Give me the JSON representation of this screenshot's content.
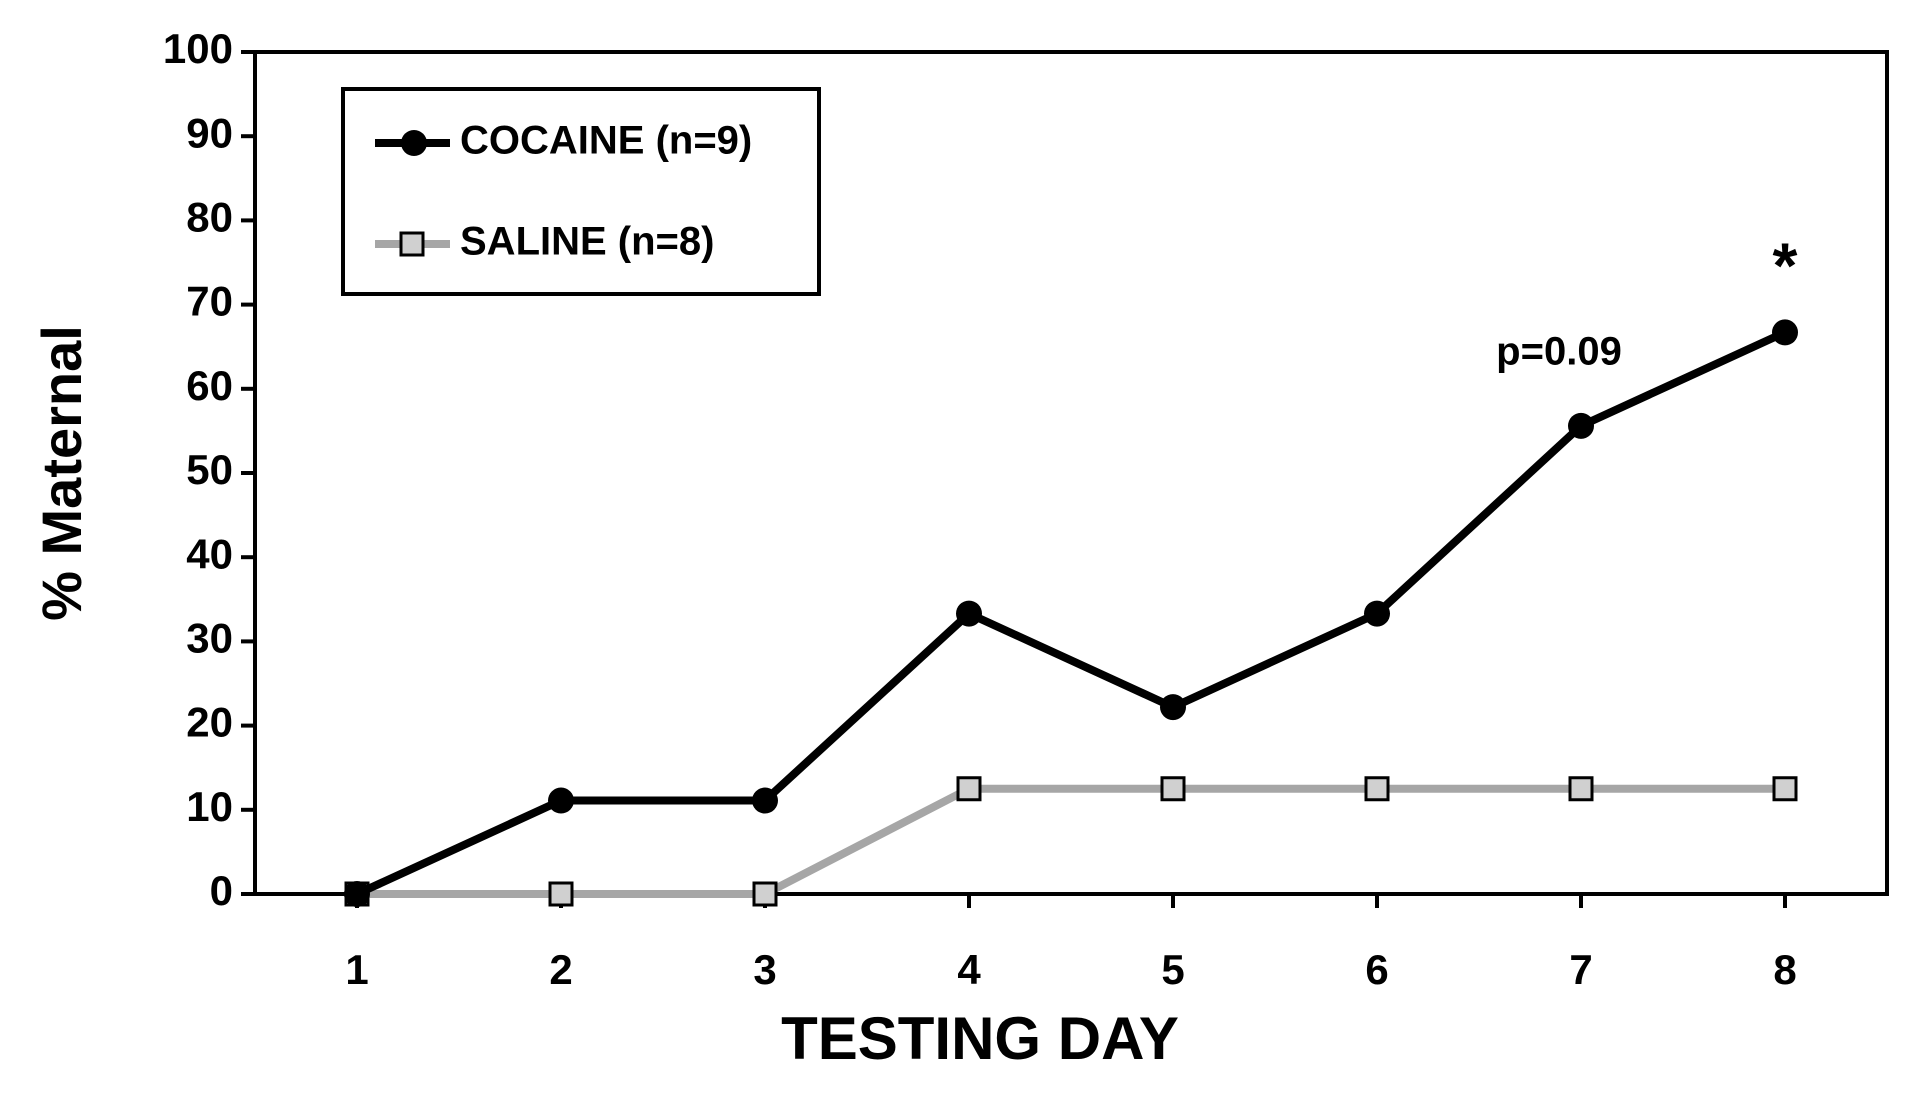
{
  "chart_data": {
    "type": "line",
    "x_label": "TESTING DAY",
    "y_label": "% Maternal",
    "categories": [
      "1",
      "2",
      "3",
      "4",
      "5",
      "6",
      "7",
      "8"
    ],
    "series": [
      {
        "name": "COCAINE (n=9)",
        "color": "#000000",
        "marker": "circle",
        "values": [
          0,
          11.1,
          11.1,
          33.3,
          22.2,
          33.3,
          55.6,
          66.7
        ]
      },
      {
        "name": "SALINE (n=8)",
        "color": "#a6a6a6",
        "marker": "square",
        "values": [
          0,
          0,
          0,
          12.5,
          12.5,
          12.5,
          12.5,
          12.5
        ]
      }
    ],
    "annotations": [
      {
        "text": "p=0.09"
      },
      {
        "text": "*"
      }
    ],
    "ylim": [
      0,
      100
    ],
    "yticks": [
      0,
      10,
      20,
      30,
      40,
      50,
      60,
      70,
      80,
      90,
      100
    ],
    "grid": false,
    "legend": "upper left"
  }
}
